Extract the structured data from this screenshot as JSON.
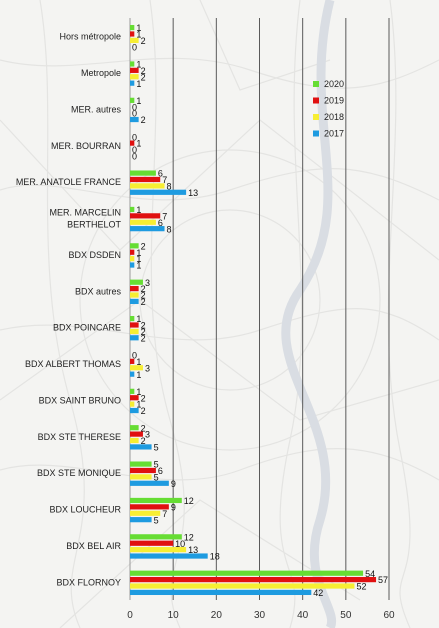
{
  "chart_data": {
    "type": "bar",
    "orientation": "horizontal",
    "title": "",
    "xlabel": "",
    "ylabel": "",
    "xlim": [
      0,
      60
    ],
    "x_ticks": [
      "0",
      "10",
      "20",
      "30",
      "40",
      "50",
      "60"
    ],
    "grid": "vertical",
    "legend_position": "right",
    "categories": [
      "Hors métropole",
      "Metropole",
      "MER. autres",
      "MER. BOURRAN",
      "MER. ANATOLE FRANCE",
      "MER. MARCELIN BERTHELOT",
      "BDX  DSDEN",
      "BDX autres",
      "BDX POINCARE",
      "BDX ALBERT THOMAS",
      "BDX SAINT BRUNO",
      "BDX STE THERESE",
      "BDX STE MONIQUE",
      "BDX LOUCHEUR",
      "BDX BEL AIR",
      "BDX FLORNOY"
    ],
    "series": [
      {
        "name": "2020",
        "color": "#66dd33",
        "values": [
          1,
          1,
          1,
          0,
          6,
          1,
          2,
          3,
          1,
          0,
          1,
          2,
          5,
          12,
          12,
          54
        ]
      },
      {
        "name": "2019",
        "color": "#e01010",
        "values": [
          1,
          2,
          0,
          1,
          7,
          7,
          1,
          2,
          2,
          1,
          2,
          3,
          6,
          9,
          10,
          57
        ]
      },
      {
        "name": "2018",
        "color": "#f7ee33",
        "values": [
          2,
          2,
          0,
          0,
          8,
          6,
          1,
          2,
          2,
          3,
          1,
          2,
          5,
          7,
          13,
          52
        ]
      },
      {
        "name": "2017",
        "color": "#1e9be0",
        "values": [
          0,
          1,
          2,
          0,
          13,
          8,
          1,
          2,
          2,
          1,
          2,
          5,
          9,
          5,
          18,
          42
        ]
      }
    ],
    "legend_order": [
      "2020",
      "2019",
      "2018",
      "2017"
    ]
  }
}
